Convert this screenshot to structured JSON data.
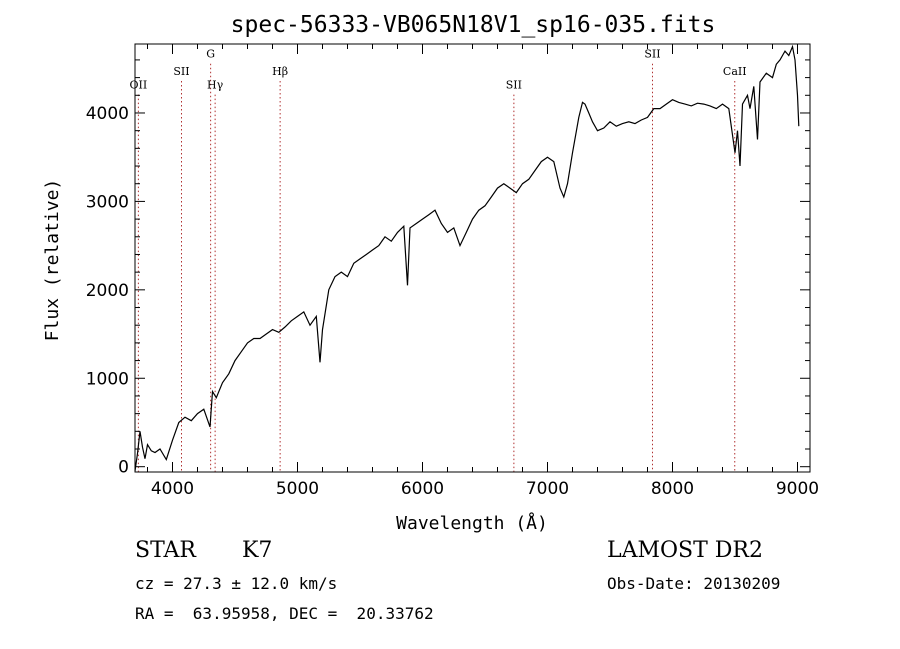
{
  "chart_data": {
    "type": "line",
    "title": "spec-56333-VB065N18V1_sp16-035.fits",
    "xlabel": "Wavelength (Å)",
    "ylabel": "Flux (relative)",
    "xlim": [
      3700,
      9100
    ],
    "ylim": [
      -60,
      4780
    ],
    "xticks": [
      4000,
      5000,
      6000,
      7000,
      8000,
      9000
    ],
    "yticks": [
      0,
      1000,
      2000,
      3000,
      4000
    ],
    "grid": false,
    "lines": [
      {
        "label": "OII",
        "x": 3727,
        "y": 4275
      },
      {
        "label": "SII",
        "x": 4072,
        "y": 4430
      },
      {
        "label": "G",
        "x": 4305,
        "y": 4625
      },
      {
        "label": "Hγ",
        "x": 4341,
        "y": 4275
      },
      {
        "label": "Hβ",
        "x": 4861,
        "y": 4430
      },
      {
        "label": "SII",
        "x": 6731,
        "y": 4275
      },
      {
        "label": "SII",
        "x": 7840,
        "y": 4625
      },
      {
        "label": "CaII",
        "x": 8498,
        "y": 4430
      }
    ],
    "series": [
      {
        "name": "flux",
        "x": [
          3700,
          3720,
          3740,
          3760,
          3780,
          3800,
          3830,
          3860,
          3900,
          3950,
          4000,
          4050,
          4100,
          4150,
          4200,
          4250,
          4300,
          4320,
          4350,
          4400,
          4450,
          4500,
          4550,
          4600,
          4650,
          4700,
          4750,
          4800,
          4850,
          4900,
          4950,
          5000,
          5050,
          5100,
          5150,
          5180,
          5200,
          5250,
          5300,
          5350,
          5400,
          5450,
          5500,
          5550,
          5600,
          5650,
          5700,
          5750,
          5800,
          5850,
          5880,
          5900,
          5950,
          6000,
          6050,
          6100,
          6150,
          6200,
          6250,
          6300,
          6350,
          6400,
          6450,
          6500,
          6550,
          6600,
          6650,
          6700,
          6750,
          6800,
          6850,
          6900,
          6950,
          7000,
          7050,
          7100,
          7130,
          7160,
          7200,
          7250,
          7280,
          7300,
          7330,
          7360,
          7400,
          7450,
          7500,
          7550,
          7600,
          7650,
          7700,
          7750,
          7800,
          7850,
          7900,
          7950,
          8000,
          8050,
          8100,
          8150,
          8200,
          8250,
          8300,
          8350,
          8400,
          8450,
          8500,
          8520,
          8540,
          8560,
          8580,
          8600,
          8620,
          8650,
          8680,
          8700,
          8750,
          8800,
          8830,
          8860,
          8900,
          8930,
          8960,
          8980,
          9000,
          9010
        ],
        "y": [
          -50,
          150,
          400,
          220,
          90,
          250,
          180,
          160,
          200,
          80,
          300,
          500,
          560,
          520,
          600,
          650,
          450,
          850,
          780,
          950,
          1050,
          1200,
          1300,
          1400,
          1450,
          1450,
          1500,
          1550,
          1520,
          1580,
          1650,
          1700,
          1750,
          1600,
          1700,
          1180,
          1550,
          2000,
          2150,
          2200,
          2150,
          2300,
          2350,
          2400,
          2450,
          2500,
          2600,
          2550,
          2650,
          2720,
          2050,
          2700,
          2750,
          2800,
          2850,
          2900,
          2750,
          2650,
          2700,
          2500,
          2650,
          2800,
          2900,
          2950,
          3050,
          3150,
          3200,
          3150,
          3100,
          3200,
          3250,
          3350,
          3450,
          3500,
          3450,
          3150,
          3050,
          3200,
          3550,
          3950,
          4120,
          4100,
          4000,
          3900,
          3800,
          3830,
          3900,
          3850,
          3880,
          3900,
          3880,
          3920,
          3950,
          4050,
          4050,
          4100,
          4150,
          4120,
          4100,
          4080,
          4110,
          4100,
          4080,
          4050,
          4100,
          4050,
          3550,
          3800,
          3400,
          4100,
          4150,
          4200,
          4050,
          4300,
          3700,
          4350,
          4450,
          4400,
          4550,
          4600,
          4700,
          4650,
          4750,
          4600,
          4200,
          3850
        ]
      }
    ]
  },
  "info": {
    "object_class": "STAR",
    "subclass": "K7",
    "cz_line": "cz = 27.3 ± 12.0 km/s",
    "coords_line": "RA =  63.95958, DEC =  20.33762",
    "survey": "LAMOST DR2",
    "obs_date_line": "Obs-Date: 20130209"
  }
}
